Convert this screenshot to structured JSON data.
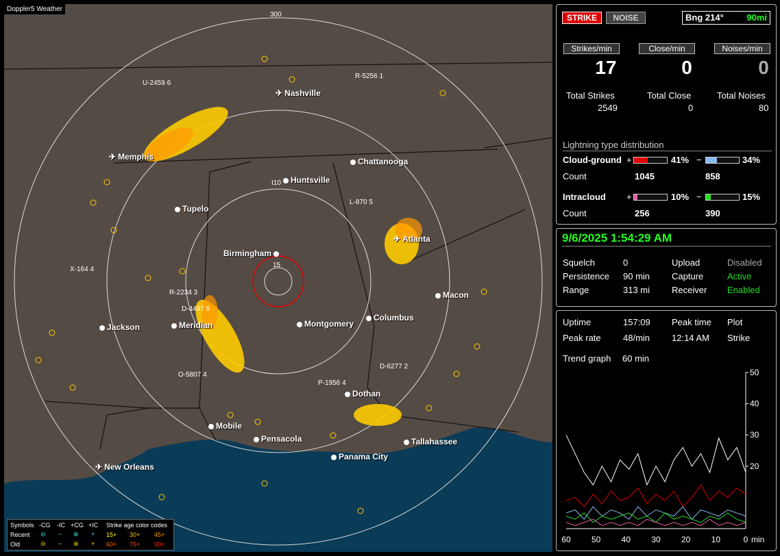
{
  "map": {
    "title": "Doppler5 Weather",
    "ring_labels": {
      "outer": "300",
      "inner": "15"
    },
    "cities": [
      {
        "name": "Nashville",
        "type": "airport"
      },
      {
        "name": "Memphis",
        "type": "airport"
      },
      {
        "name": "Chattanooga",
        "type": "city"
      },
      {
        "name": "Huntsville",
        "type": "city"
      },
      {
        "name": "I10",
        "type": "road"
      },
      {
        "name": "Tupelo",
        "type": "city"
      },
      {
        "name": "Atlanta",
        "type": "airport"
      },
      {
        "name": "Birmingham",
        "type": "city"
      },
      {
        "name": "Macon",
        "type": "city"
      },
      {
        "name": "Jackson",
        "type": "city"
      },
      {
        "name": "Meridian",
        "type": "city"
      },
      {
        "name": "Montgomery",
        "type": "city"
      },
      {
        "name": "Columbus",
        "type": "city"
      },
      {
        "name": "Dothan",
        "type": "city"
      },
      {
        "name": "Mobile",
        "type": "city"
      },
      {
        "name": "Pensacola",
        "type": "city"
      },
      {
        "name": "Tallahassee",
        "type": "city"
      },
      {
        "name": "Panama City",
        "type": "city"
      },
      {
        "name": "New Orleans",
        "type": "airport"
      }
    ],
    "markers": [
      {
        "label": "U-2459 6"
      },
      {
        "label": "R-5256 1"
      },
      {
        "label": "L-870 5"
      },
      {
        "label": "X-164 4"
      },
      {
        "label": "R-2234 3"
      },
      {
        "label": "D-4497 6"
      },
      {
        "label": "O-5807 4"
      },
      {
        "label": "P-1956 4"
      },
      {
        "label": "D-6277 2"
      }
    ]
  },
  "legend": {
    "symbols_label": "Symbols",
    "cols": [
      "-CG",
      "-IC",
      "+CG",
      "+IC"
    ],
    "recent_label": "Recent",
    "old_label": "Old",
    "age_title": "Strike age color codes",
    "age_recent": [
      "15+",
      "30+",
      "45+"
    ],
    "age_old": [
      "60+",
      "75+",
      "90+"
    ],
    "colors": [
      "#ffff00",
      "#ffcc00",
      "#ff9900",
      "#ff6600",
      "#ff4400",
      "#ff2200"
    ]
  },
  "status": {
    "strike_button": "STRIKE",
    "noise_button": "NOISE",
    "bearing": "Bng 214°",
    "distance": "90mi",
    "strikes_per_min_label": "Strikes/min",
    "close_per_min_label": "Close/min",
    "noises_per_min_label": "Noises/min",
    "strikes_per_min": "17",
    "close_per_min": "0",
    "noises_per_min": "0",
    "total_strikes_label": "Total Strikes",
    "total_close_label": "Total Close",
    "total_noises_label": "Total Noises",
    "total_strikes": "2549",
    "total_close": "0",
    "total_noises": "80",
    "dist_title": "Lightning type distribution",
    "cg_label": "Cloud-ground",
    "ic_label": "Intracloud",
    "count_label": "Count",
    "plus": "+",
    "minus": "−",
    "cg_plus_pct": "41%",
    "cg_minus_pct": "34%",
    "cg_plus_count": "1045",
    "cg_minus_count": "858",
    "ic_plus_pct": "10%",
    "ic_minus_pct": "15%",
    "ic_plus_count": "256",
    "ic_minus_count": "390",
    "cg_plus_fraction": 0.41,
    "cg_minus_fraction": 0.34,
    "ic_plus_fraction": 0.1,
    "ic_minus_fraction": 0.15,
    "cg_plus_color": "#e00000",
    "cg_minus_color": "#88bbee",
    "ic_plus_color": "#e060a0",
    "ic_minus_color": "#22dd22"
  },
  "settings": {
    "datetime": "9/6/2025 1:54:29 AM",
    "squelch_label": "Squelch",
    "squelch": "0",
    "upload_label": "Upload",
    "upload": "Disabled",
    "persistence_label": "Persistence",
    "persistence": "90 min",
    "capture_label": "Capture",
    "capture": "Active",
    "range_label": "Range",
    "range": "313 mi",
    "receiver_label": "Receiver",
    "receiver": "Enabled",
    "active_color": "#22dd22",
    "disabled_color": "#aaaaaa"
  },
  "trend": {
    "uptime_label": "Uptime",
    "uptime": "157:09",
    "peak_time_label": "Peak time",
    "plot_label": "Plot",
    "peak_rate_label": "Peak rate",
    "peak_rate": "48/min",
    "peak_time": "12:14 AM",
    "plot": "Strike",
    "graph_label": "Trend graph",
    "graph_window": "60 min",
    "y_ticks": [
      "50",
      "40",
      "30",
      "20"
    ],
    "x_ticks": [
      "60",
      "50",
      "40",
      "30",
      "20",
      "10",
      "0"
    ],
    "x_unit": "min"
  },
  "chart_data": {
    "type": "line",
    "title": "",
    "xlabel": "min",
    "ylabel": "",
    "ylim": [
      0,
      50
    ],
    "xlim": [
      60,
      0
    ],
    "x": [
      60,
      57,
      54,
      51,
      48,
      45,
      42,
      39,
      36,
      33,
      30,
      27,
      24,
      21,
      18,
      15,
      12,
      9,
      6,
      3,
      0
    ],
    "series": [
      {
        "values": [
          30,
          24,
          18,
          14,
          20,
          15,
          22,
          19,
          24,
          14,
          20,
          15,
          22,
          26,
          20,
          24,
          18,
          29,
          22,
          26,
          18
        ]
      },
      {
        "values": [
          9,
          10,
          7,
          11,
          8,
          12,
          9,
          10,
          13,
          8,
          11,
          9,
          12,
          7,
          10,
          14,
          9,
          12,
          10,
          13,
          11
        ]
      },
      {
        "values": [
          5,
          6,
          3,
          7,
          4,
          6,
          5,
          3,
          7,
          4,
          6,
          5,
          4,
          7,
          3,
          6,
          5,
          4,
          6,
          5,
          4
        ]
      },
      {
        "values": [
          4,
          3,
          5,
          2,
          4,
          3,
          4,
          5,
          3,
          4,
          2,
          5,
          3,
          4,
          3,
          2,
          4,
          3,
          5,
          3,
          2
        ]
      },
      {
        "values": [
          2,
          1,
          2,
          3,
          1,
          2,
          1,
          2,
          1,
          3,
          2,
          1,
          2,
          1,
          2,
          1,
          3,
          1,
          2,
          1,
          2
        ]
      }
    ],
    "series_colors": [
      "#ffffff",
      "#dd0000",
      "#88bbee",
      "#22dd22",
      "#e060a0"
    ]
  }
}
